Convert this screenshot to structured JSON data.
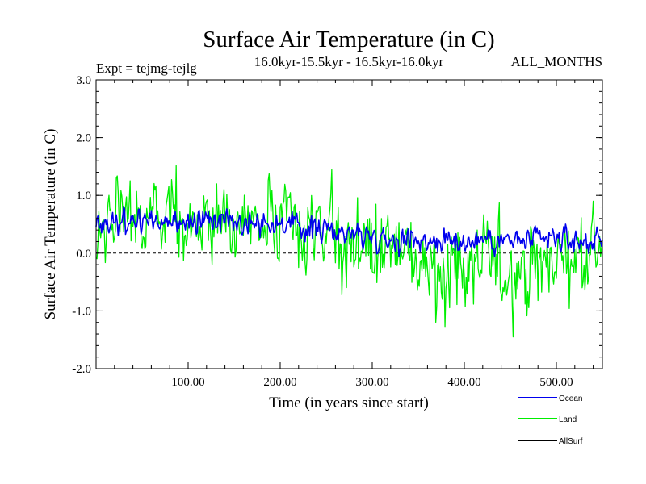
{
  "chart_data": {
    "type": "line",
    "title": "Surface Air Temperature (in C)",
    "subtitle_left": "Expt = tejmg-tejlg",
    "subtitle_center": "16.0kyr-15.5kyr - 16.5kyr-16.0kyr",
    "subtitle_right": "ALL_MONTHS",
    "xlabel": "Time (in years since start)",
    "ylabel": "Surface Air Temperature (in C)",
    "xlim": [
      0,
      550
    ],
    "ylim": [
      -2.0,
      3.0
    ],
    "x_ticks": [
      100,
      200,
      300,
      400,
      500
    ],
    "x_tick_labels": [
      "100.00",
      "200.00",
      "300.00",
      "400.00",
      "500.00"
    ],
    "y_ticks": [
      -2.0,
      -1.0,
      0.0,
      1.0,
      2.0,
      3.0
    ],
    "y_tick_labels": [
      "-2.0",
      "-1.0",
      "0.0",
      "1.0",
      "2.0",
      "3.0"
    ],
    "zero_line": true,
    "series": [
      {
        "name": "Land",
        "color": "#00ee00",
        "x": [
          0,
          25,
          50,
          75,
          100,
          125,
          150,
          175,
          200,
          225,
          250,
          275,
          300,
          325,
          350,
          375,
          400,
          425,
          450,
          475,
          500,
          525,
          550
        ],
        "values": [
          0.5,
          0.55,
          0.5,
          0.45,
          0.5,
          0.5,
          0.5,
          0.55,
          0.45,
          0.35,
          0.3,
          0.2,
          0.1,
          0.0,
          -0.1,
          -0.2,
          -0.3,
          -0.25,
          -0.2,
          -0.3,
          -0.1,
          0.0,
          0.2
        ],
        "spread": [
          1.0,
          1.0,
          1.0,
          1.0,
          1.0,
          1.0,
          1.0,
          1.0,
          1.0,
          1.05,
          1.1,
          1.1,
          1.1,
          1.15,
          1.2,
          1.2,
          1.25,
          1.2,
          1.2,
          1.2,
          1.1,
          1.05,
          1.0
        ]
      },
      {
        "name": "Ocean",
        "color": "#0000ee",
        "x": [
          0,
          25,
          50,
          75,
          100,
          125,
          150,
          175,
          200,
          225,
          250,
          275,
          300,
          325,
          350,
          375,
          400,
          425,
          450,
          475,
          500,
          525,
          550
        ],
        "values": [
          0.5,
          0.6,
          0.55,
          0.5,
          0.55,
          0.55,
          0.6,
          0.55,
          0.5,
          0.45,
          0.4,
          0.35,
          0.3,
          0.25,
          0.25,
          0.2,
          0.2,
          0.25,
          0.2,
          0.2,
          0.25,
          0.2,
          0.2
        ],
        "spread": [
          0.3,
          0.3,
          0.3,
          0.3,
          0.3,
          0.3,
          0.3,
          0.3,
          0.3,
          0.3,
          0.3,
          0.3,
          0.3,
          0.3,
          0.3,
          0.3,
          0.3,
          0.3,
          0.3,
          0.3,
          0.3,
          0.3,
          0.3
        ]
      },
      {
        "name": "AllSurf",
        "color": "#000000",
        "x": [],
        "values": [],
        "spread": []
      }
    ],
    "legend": [
      "Ocean",
      "Land",
      "AllSurf"
    ],
    "legend_position": "bottom-right"
  }
}
